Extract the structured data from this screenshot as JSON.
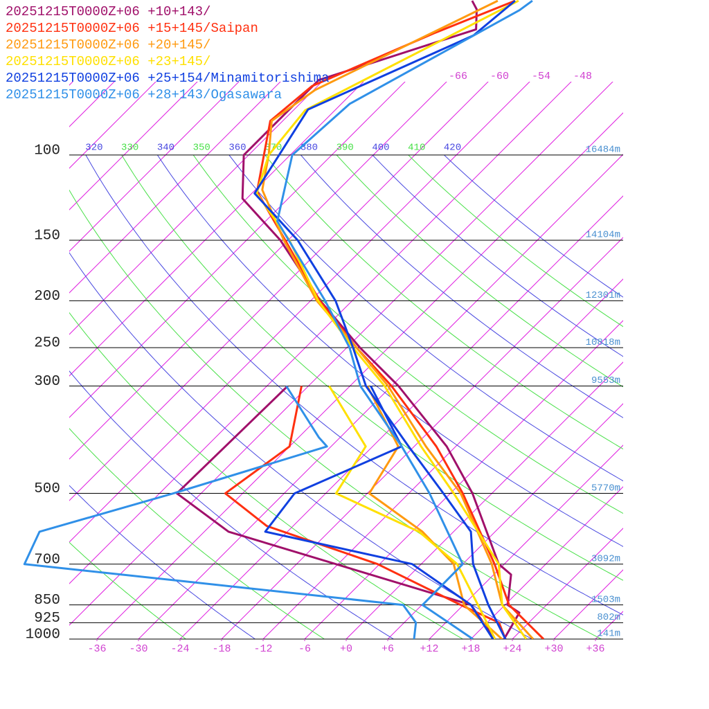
{
  "chart_data": {
    "type": "skewt",
    "yticks": [
      100,
      150,
      200,
      250,
      300,
      500,
      700,
      850,
      925,
      1000
    ],
    "heights": [
      "16484m",
      "14104m",
      "12301m",
      "10818m",
      "9553m",
      "5770m",
      "3092m",
      "1503m",
      "802m",
      "141m"
    ],
    "xticks": [
      -36,
      -30,
      -24,
      -18,
      -12,
      -6,
      {
        "value": 0,
        "label": "+0"
      },
      {
        "value": 6,
        "label": "+6"
      },
      {
        "value": 12,
        "label": "+12"
      },
      {
        "value": 18,
        "label": "+18"
      },
      {
        "value": 24,
        "label": "+24"
      },
      {
        "value": 30,
        "label": "+30"
      },
      {
        "value": 36,
        "label": "+36"
      }
    ],
    "isotherms": [
      -120,
      -114,
      -108,
      -102,
      -96,
      -90,
      -84,
      -78,
      -72,
      -66,
      -60,
      -54,
      -48,
      -42,
      -36,
      -30,
      -24,
      -18,
      -12,
      -6,
      0,
      6,
      12,
      18,
      24,
      30,
      36
    ],
    "isotherm_labels": [
      -66,
      -60,
      -54,
      -48
    ],
    "isotherm_color": "#e020e0",
    "theta_lines": [
      250,
      260,
      270,
      280,
      290,
      300,
      310,
      320,
      330,
      340,
      350,
      360,
      370,
      380,
      390,
      400,
      410,
      420
    ],
    "theta_colors": [
      "#4848e0",
      "#48e048"
    ],
    "series": [
      {
        "name": "20251215T0000Z+06 +10+143/",
        "color": "#a0106a",
        "pressure": [
          1000,
          882,
          850,
          736,
          700,
          500,
          400,
          300,
          250,
          200,
          150,
          123,
          100,
          70,
          55,
          50,
          48
        ],
        "temperature": [
          22.8,
          21.2,
          18.4,
          14.5,
          11.2,
          -2.8,
          -13.3,
          -29,
          -40.1,
          -52.6,
          -67.1,
          -78.6,
          -84.7,
          -84.7,
          -69.3,
          -72.1,
          -74
        ],
        "dewpoint_pressure": [
          1000,
          850,
          600,
          500,
          300
        ],
        "dewpoint": [
          21.5,
          13.1,
          -32.5,
          -45.5,
          -45
        ]
      },
      {
        "name": "20251215T0000Z+06 +15+145/Saipan",
        "color": "#ff3010",
        "pressure": [
          1000,
          850,
          700,
          500,
          400,
          300,
          250,
          200,
          150,
          119,
          85,
          72,
          56,
          48
        ],
        "temperature": [
          28.5,
          18.6,
          10.6,
          -4.2,
          -14.8,
          -30,
          -40.6,
          -52.7,
          -66.4,
          -77.5,
          -85.8,
          -84.8,
          -74.8,
          -67.8
        ],
        "dewpoint_pressure": [
          1000,
          925,
          850,
          700,
          584,
          500,
          400,
          300
        ],
        "dewpoint": [
          23,
          19.7,
          11.6,
          -6.3,
          -27.8,
          -38.5,
          -36,
          -43
        ]
      },
      {
        "name": "20251215T0000Z+06 +20+145/",
        "color": "#ff9a10",
        "pressure": [
          1000,
          850,
          700,
          500,
          400,
          300,
          250,
          200,
          150,
          118,
          100,
          85,
          81.5,
          73.4,
          48
        ],
        "temperature": [
          27,
          17.6,
          10.2,
          -4.5,
          -16.3,
          -30.5,
          -40.6,
          -53.1,
          -66.6,
          -77,
          -81.1,
          -85.6,
          -85.1,
          -83.8,
          -70.3
        ],
        "dewpoint_pressure": [
          1000,
          850,
          700,
          600,
          500,
          400,
          300
        ],
        "dewpoint": [
          22.5,
          12.1,
          4.7,
          -4.5,
          -17.7,
          -20.3,
          -33.5
        ]
      },
      {
        "name": "20251215T0000Z+06 +23+145/",
        "color": "#ffe000",
        "pressure": [
          1000,
          850,
          700,
          500,
          400,
          300,
          250,
          200,
          150,
          120,
          100,
          80.8,
          48
        ],
        "temperature": [
          26,
          17.6,
          11.2,
          -5.5,
          -17,
          -31,
          -41.1,
          -52.9,
          -65.8,
          -77.3,
          -81.1,
          -82.3,
          -67.3
        ],
        "dewpoint_pressure": [
          1000,
          850,
          700,
          600,
          500,
          400,
          300
        ],
        "dewpoint": [
          21.5,
          14.1,
          5.2,
          -5,
          -22.5,
          -25,
          -39
        ]
      },
      {
        "name": "20251215T0000Z+06 +25+154/Minamitorishima",
        "color": "#1040e0",
        "pressure": [
          1000,
          850,
          700,
          600,
          500,
          400,
          300,
          250,
          200,
          150,
          120,
          100,
          80.5,
          56.6,
          48
        ],
        "temperature": [
          23,
          15.6,
          7.5,
          2.5,
          -7,
          -18.8,
          -33.7,
          -41.1,
          -50.4,
          -64.6,
          -77.6,
          -79.6,
          -82,
          -68.8,
          -67.8
        ],
        "dewpoint_pressure": [
          1000,
          850,
          700,
          600,
          500,
          400,
          300
        ],
        "dewpoint": [
          21.2,
          13.1,
          -1.3,
          -27.2,
          -28.5,
          -19.8,
          -33
        ]
      },
      {
        "name": "20251215T0000Z+06 +28+143/Ogasawara",
        "color": "#3090e8",
        "pressure": [
          1000,
          850,
          700,
          500,
          400,
          300,
          250,
          200,
          137,
          100,
          78.4,
          50.2,
          48
        ],
        "temperature": [
          18.3,
          6.1,
          6,
          -9,
          -19.8,
          -34.5,
          -41.6,
          -51.9,
          -70.3,
          -77.7,
          -76.8,
          -65.8,
          -65.3
        ],
        "dewpoint_pressure": [
          1000,
          925,
          850,
          700,
          600,
          500,
          400,
          383,
          300
        ],
        "dewpoint": [
          9.8,
          7.7,
          3.3,
          -57.3,
          -59.8,
          -46,
          -30.6,
          -33.1,
          -45.2
        ]
      }
    ]
  }
}
